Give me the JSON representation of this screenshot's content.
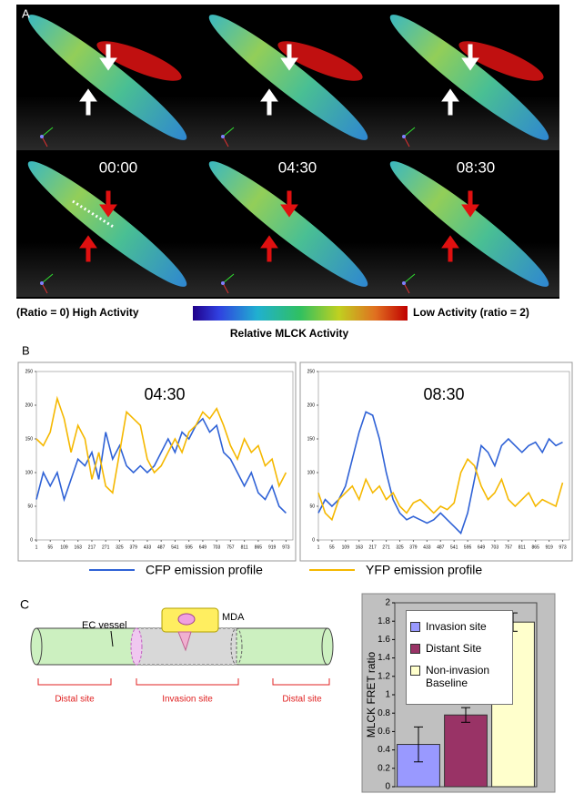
{
  "panel_a": {
    "label": "A",
    "times": [
      "00:00",
      "04:30",
      "08:30"
    ],
    "colorbar": {
      "left_label": "(Ratio = 0) High Activity",
      "right_label": "Low Activity (ratio = 2)",
      "title": "Relative MLCK Activity"
    }
  },
  "panel_b": {
    "label": "B"
  },
  "panel_c": {
    "label": "C",
    "diagram": {
      "vessel": "EC vessel",
      "cell": "MDA",
      "sites": [
        "Distal site",
        "Invasion site",
        "Distal site"
      ]
    }
  },
  "chart_data": [
    {
      "type": "line",
      "title": "04:30",
      "x": [
        1,
        28,
        55,
        82,
        109,
        136,
        163,
        190,
        217,
        244,
        271,
        298,
        325,
        352,
        379,
        406,
        433,
        460,
        487,
        514,
        541,
        568,
        595,
        622,
        649,
        676,
        703,
        730,
        757,
        784,
        811,
        838,
        865,
        892,
        919,
        946,
        973
      ],
      "series": [
        {
          "name": "CFP emission profile",
          "color": "#2f62d6",
          "values": [
            60,
            100,
            80,
            100,
            60,
            90,
            120,
            110,
            130,
            90,
            160,
            120,
            140,
            110,
            100,
            110,
            100,
            110,
            130,
            150,
            130,
            160,
            150,
            170,
            180,
            160,
            170,
            130,
            120,
            100,
            80,
            100,
            70,
            60,
            80,
            50,
            40
          ]
        },
        {
          "name": "YFP emission profile",
          "color": "#f5b800",
          "values": [
            150,
            140,
            160,
            210,
            180,
            130,
            170,
            150,
            90,
            130,
            80,
            70,
            130,
            190,
            180,
            170,
            120,
            100,
            110,
            130,
            150,
            130,
            160,
            170,
            190,
            180,
            195,
            170,
            140,
            120,
            150,
            130,
            140,
            110,
            120,
            80,
            100
          ]
        }
      ],
      "xlim": [
        1,
        1000
      ],
      "xticks": [
        1,
        55,
        109,
        163,
        217,
        271,
        325,
        379,
        433,
        487,
        541,
        595,
        649,
        703,
        757,
        811,
        865,
        919,
        973
      ],
      "ylim": [
        0,
        250
      ],
      "yticks": [
        0,
        50,
        100,
        150,
        200,
        250
      ]
    },
    {
      "type": "line",
      "title": "08:30",
      "x": [
        1,
        28,
        55,
        82,
        109,
        136,
        163,
        190,
        217,
        244,
        271,
        298,
        325,
        352,
        379,
        406,
        433,
        460,
        487,
        514,
        541,
        568,
        595,
        622,
        649,
        676,
        703,
        730,
        757,
        784,
        811,
        838,
        865,
        892,
        919,
        946,
        973
      ],
      "series": [
        {
          "color": "#2f62d6",
          "values": [
            40,
            60,
            50,
            60,
            80,
            120,
            160,
            190,
            185,
            150,
            100,
            60,
            40,
            30,
            35,
            30,
            25,
            30,
            40,
            30,
            20,
            10,
            40,
            90,
            140,
            130,
            110,
            140,
            150,
            140,
            130,
            140,
            145,
            130,
            150,
            140,
            145
          ]
        },
        {
          "color": "#f5b800",
          "values": [
            70,
            40,
            30,
            60,
            70,
            80,
            60,
            90,
            70,
            80,
            60,
            70,
            50,
            40,
            55,
            60,
            50,
            40,
            50,
            45,
            55,
            100,
            120,
            110,
            80,
            60,
            70,
            90,
            60,
            50,
            60,
            70,
            50,
            60,
            55,
            50,
            85
          ]
        }
      ],
      "xlim": [
        1,
        1000
      ],
      "xticks": [
        1,
        55,
        109,
        163,
        217,
        271,
        325,
        379,
        433,
        487,
        541,
        595,
        649,
        703,
        757,
        811,
        865,
        919,
        973
      ],
      "ylim": [
        0,
        250
      ],
      "yticks": [
        0,
        50,
        100,
        150,
        200,
        250
      ]
    },
    {
      "type": "bar",
      "ylabel": "MLCK FRET ratio",
      "categories": [
        "Invasion site",
        "Distant Site",
        "Non-invasion Baseline"
      ],
      "values": [
        0.46,
        0.78,
        1.79
      ],
      "errors": [
        0.19,
        0.08,
        0.1
      ],
      "colors": [
        "#9999ff",
        "#993366",
        "#ffffcc"
      ],
      "ylim": [
        0,
        2
      ],
      "yticks": [
        0,
        0.2,
        0.4,
        0.6,
        0.8,
        1,
        1.2,
        1.4,
        1.6,
        1.8,
        2
      ]
    }
  ]
}
